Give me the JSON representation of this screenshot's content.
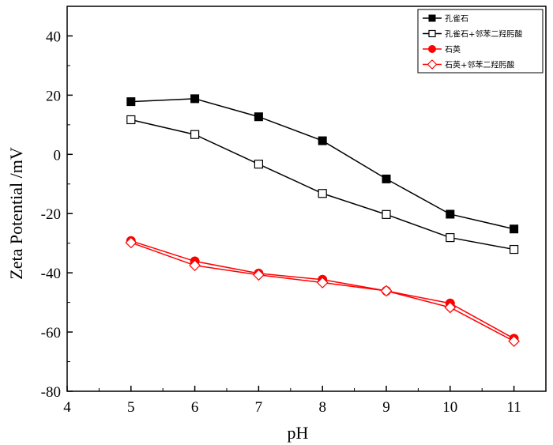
{
  "chart_data": {
    "type": "line",
    "title": "",
    "xlabel": "pH",
    "ylabel": "Zeta Potential /mV",
    "xlim": [
      4,
      11.5
    ],
    "ylim": [
      -80,
      50
    ],
    "xticks": [
      4,
      5,
      6,
      7,
      8,
      9,
      10,
      11
    ],
    "yticks": [
      -80,
      -60,
      -40,
      -20,
      0,
      20,
      40
    ],
    "x": [
      5,
      6,
      7,
      8,
      9,
      10,
      11
    ],
    "legend_position": "top-right",
    "series": [
      {
        "name": "孔雀石",
        "color": "#000000",
        "marker": "square-filled",
        "values": [
          17.8,
          18.8,
          12.7,
          4.6,
          -8.3,
          -20.2,
          -25.2
        ]
      },
      {
        "name": "孔雀石+邻苯二羟肟酸",
        "color": "#000000",
        "marker": "square-open",
        "values": [
          11.7,
          6.7,
          -3.3,
          -13.2,
          -20.3,
          -28.1,
          -32.1
        ]
      },
      {
        "name": "石英",
        "color": "#ff0000",
        "marker": "circle-filled",
        "values": [
          -29.2,
          -36.1,
          -40.2,
          -42.3,
          -46.1,
          -50.3,
          -62.2
        ]
      },
      {
        "name": "石英+邻苯二羟肟酸",
        "color": "#ff0000",
        "marker": "diamond-open",
        "values": [
          -29.8,
          -37.5,
          -40.7,
          -43.3,
          -46.1,
          -51.7,
          -63.1
        ]
      }
    ]
  }
}
